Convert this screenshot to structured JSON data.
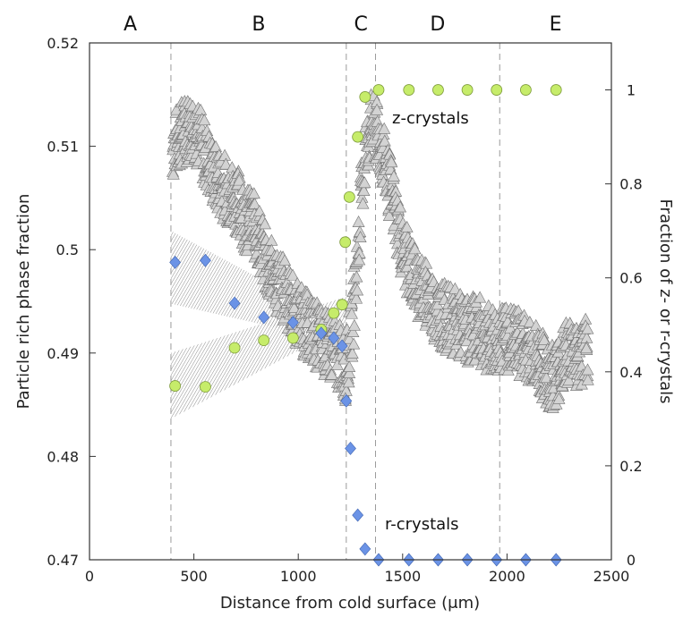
{
  "chart_data": {
    "type": "scatter",
    "xlabel": "Distance from cold surface (μm)",
    "ylabel_left": "Particle rich phase fraction",
    "ylabel_right": "Fraction of z- or r-crystals",
    "xlim": [
      0,
      2500
    ],
    "ylim_left": [
      0.47,
      0.52
    ],
    "ylim_right": [
      0,
      1.1
    ],
    "x_ticks": [
      "0",
      "500",
      "1000",
      "1500",
      "2000",
      "2500"
    ],
    "y_left_ticks": [
      "0.47",
      "0.48",
      "0.49",
      "0.5",
      "0.51",
      "0.52"
    ],
    "y_right_ticks": [
      "0",
      "0.2",
      "0.4",
      "0.6",
      "0.8",
      "1"
    ],
    "regions": [
      {
        "label": "A",
        "x_start": 0,
        "x_end": 390
      },
      {
        "label": "B",
        "x_start": 390,
        "x_end": 1230
      },
      {
        "label": "C",
        "x_start": 1230,
        "x_end": 1370
      },
      {
        "label": "D",
        "x_start": 1370,
        "x_end": 1965
      },
      {
        "label": "E",
        "x_start": 1965,
        "x_end": 2500
      }
    ],
    "boundaries": [
      390,
      1230,
      1370,
      1965
    ],
    "annotations": {
      "z": "z-crystals",
      "r": "r-crystals"
    },
    "z_crystals": {
      "axis": "right",
      "color": "#c6ec6a",
      "x": [
        410,
        555,
        695,
        835,
        975,
        1110,
        1170,
        1210,
        1225,
        1245,
        1285,
        1320,
        1385,
        1530,
        1670,
        1810,
        1950,
        2090,
        2235
      ],
      "y": [
        0.37,
        0.368,
        0.451,
        0.467,
        0.472,
        0.49,
        0.525,
        0.543,
        0.676,
        0.772,
        0.9,
        0.985,
        1.0,
        1.0,
        1.0,
        1.0,
        1.0,
        1.0,
        1.0
      ]
    },
    "r_crystals": {
      "axis": "right",
      "color": "#6b93e6",
      "x": [
        410,
        555,
        695,
        835,
        975,
        1110,
        1170,
        1210,
        1230,
        1250,
        1285,
        1320,
        1385,
        1530,
        1670,
        1810,
        1950,
        2090,
        2235
      ],
      "y": [
        0.633,
        0.637,
        0.546,
        0.516,
        0.505,
        0.482,
        0.472,
        0.455,
        0.338,
        0.237,
        0.095,
        0.023,
        0.0,
        0.0,
        0.0,
        0.0,
        0.0,
        0.0,
        0.0
      ]
    },
    "particle_fraction_profile": {
      "axis": "left",
      "marker": "triangle",
      "color": "#d0d0d0",
      "x": [
        400,
        450,
        500,
        550,
        600,
        650,
        700,
        750,
        800,
        850,
        900,
        950,
        1000,
        1050,
        1100,
        1150,
        1200,
        1230,
        1260,
        1290,
        1320,
        1350,
        1380,
        1420,
        1460,
        1500,
        1550,
        1600,
        1650,
        1700,
        1750,
        1800,
        1850,
        1900,
        1950,
        2000,
        2050,
        2100,
        2150,
        2200,
        2250,
        2300,
        2350,
        2390
      ],
      "y": [
        0.51,
        0.5115,
        0.512,
        0.5095,
        0.507,
        0.506,
        0.505,
        0.503,
        0.502,
        0.4985,
        0.497,
        0.4955,
        0.4935,
        0.4925,
        0.4915,
        0.4905,
        0.4895,
        0.4885,
        0.493,
        0.501,
        0.5095,
        0.512,
        0.511,
        0.508,
        0.504,
        0.5,
        0.4975,
        0.496,
        0.4945,
        0.4935,
        0.493,
        0.492,
        0.4925,
        0.4915,
        0.491,
        0.4915,
        0.491,
        0.4905,
        0.4895,
        0.4875,
        0.4885,
        0.4905,
        0.4895,
        0.4905
      ]
    },
    "confidence_bands": [
      {
        "series": "r",
        "axis": "right",
        "x": [
          390,
          1230
        ],
        "low_start": 0.545,
        "high_start": 0.7,
        "low_end": 0.46,
        "high_end": 0.5
      },
      {
        "series": "z",
        "axis": "right",
        "x": [
          390,
          1230
        ],
        "low_start": 0.3,
        "high_start": 0.44,
        "low_end": 0.5,
        "high_end": 0.56
      }
    ],
    "grid": false,
    "legend": "none"
  }
}
